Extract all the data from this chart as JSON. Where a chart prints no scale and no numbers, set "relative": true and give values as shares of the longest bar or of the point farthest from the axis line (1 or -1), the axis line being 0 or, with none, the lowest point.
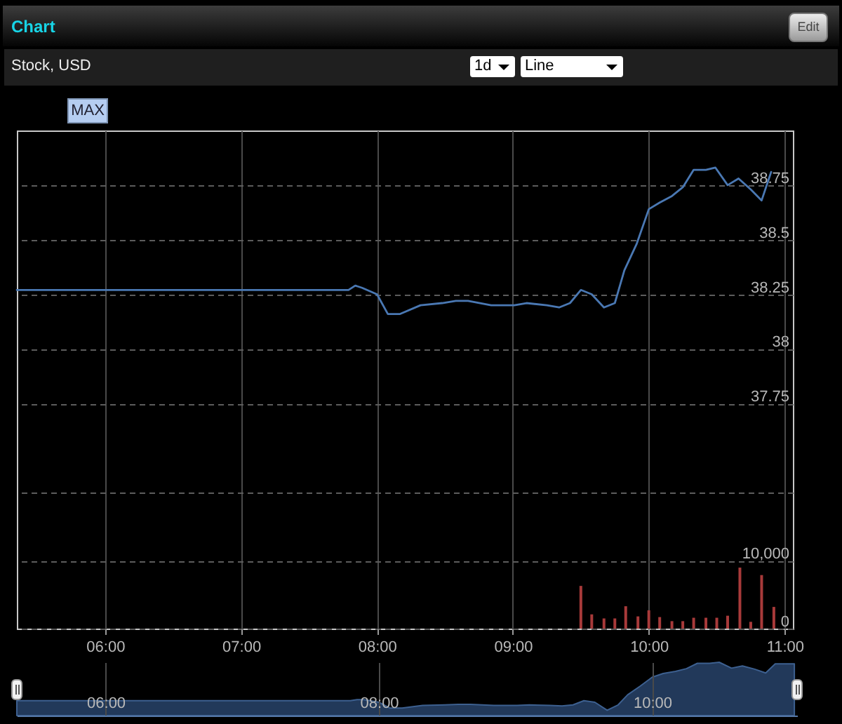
{
  "chart_data": [
    {
      "type": "line",
      "title": "Chart",
      "subtitle": "Stock, USD",
      "annotations": [
        "Edit",
        "1d",
        "Line",
        "MAX"
      ],
      "xlim": [
        5.35,
        11.06
      ],
      "xticks": [
        {
          "value": 6,
          "label": "06:00"
        },
        {
          "value": 7,
          "label": "07:00"
        },
        {
          "value": 8,
          "label": "08:00"
        },
        {
          "value": 9,
          "label": "09:00"
        },
        {
          "value": 10,
          "label": "10:00"
        },
        {
          "value": 11,
          "label": "11:00"
        }
      ],
      "ylim": [
        36.72,
        39.0
      ],
      "yticks": [
        37.75,
        38,
        38.25,
        38.5,
        38.75
      ],
      "y2lim": [
        0,
        73500
      ],
      "y2ticks": [
        0,
        {
          "value": 10000,
          "label": "10,000"
        },
        {
          "value": 20000,
          "label": null
        }
      ],
      "grid": true,
      "series": [
        {
          "color": "#4a78b3",
          "x": [
            5.35,
            7.79,
            7.84,
            7.89,
            8.0,
            8.08,
            8.17,
            8.32,
            8.48,
            8.58,
            8.67,
            8.84,
            9.01,
            9.1,
            9.25,
            9.34,
            9.42,
            9.5,
            9.58,
            9.67,
            9.75,
            9.82,
            9.91,
            10.0,
            10.08,
            10.17,
            10.25,
            10.33,
            10.42,
            10.49,
            10.58,
            10.66,
            10.75,
            10.83,
            10.9
          ],
          "values": [
            38.27,
            38.27,
            38.29,
            38.28,
            38.25,
            38.16,
            38.16,
            38.2,
            38.21,
            38.22,
            38.22,
            38.2,
            38.2,
            38.21,
            38.2,
            38.19,
            38.21,
            38.27,
            38.25,
            38.19,
            38.21,
            38.36,
            38.48,
            38.64,
            38.67,
            38.7,
            38.74,
            38.82,
            38.82,
            38.83,
            38.75,
            38.78,
            38.73,
            38.68,
            38.81
          ]
        },
        {
          "type": "bar",
          "axis": "y2",
          "color": "#a83a3a",
          "x": [
            9.5,
            9.58,
            9.67,
            9.75,
            9.83,
            9.92,
            10.0,
            10.08,
            10.17,
            10.25,
            10.33,
            10.42,
            10.5,
            10.58,
            10.67,
            10.75,
            10.83,
            10.92
          ],
          "values": [
            6300,
            2100,
            1500,
            1500,
            3300,
            1800,
            2700,
            1700,
            1100,
            1100,
            1600,
            1600,
            1600,
            1900,
            9000,
            1000,
            7900,
            3200
          ]
        }
      ]
    },
    {
      "type": "area",
      "relative": true,
      "color": "#22395a",
      "grid": "x",
      "xlim": [
        5.35,
        11.06
      ],
      "xticks": [
        {
          "value": 6,
          "label": "06:00"
        },
        {
          "value": 8,
          "label": "08:00"
        },
        {
          "value": 10,
          "label": "10:00"
        }
      ],
      "x": [
        5.35,
        7.79,
        7.84,
        7.89,
        8.0,
        8.08,
        8.17,
        8.32,
        8.48,
        8.58,
        8.67,
        8.84,
        9.01,
        9.1,
        9.25,
        9.34,
        9.42,
        9.5,
        9.58,
        9.67,
        9.75,
        9.82,
        9.91,
        10.0,
        10.08,
        10.17,
        10.25,
        10.33,
        10.42,
        10.49,
        10.58,
        10.66,
        10.75,
        10.83,
        10.9,
        11.04
      ],
      "values": [
        0.28,
        0.28,
        0.3,
        0.3,
        0.25,
        0.14,
        0.14,
        0.19,
        0.2,
        0.21,
        0.21,
        0.19,
        0.19,
        0.2,
        0.19,
        0.18,
        0.2,
        0.28,
        0.25,
        0.1,
        0.2,
        0.39,
        0.55,
        0.72,
        0.79,
        0.83,
        0.88,
        0.98,
        0.98,
        1,
        0.89,
        0.93,
        0.87,
        0.8,
        0.97,
        0.97
      ]
    }
  ]
}
